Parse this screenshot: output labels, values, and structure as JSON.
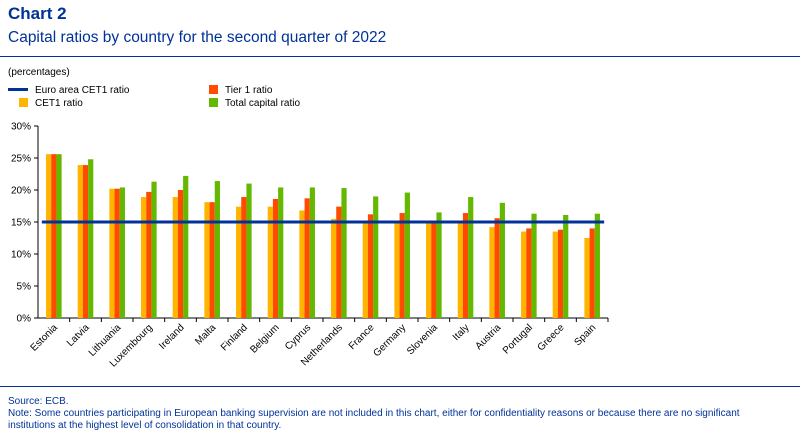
{
  "header": {
    "chart_number": "Chart 2",
    "title": "Capital ratios by country for the second quarter of 2022"
  },
  "units_note": "(percentages)",
  "legend": [
    {
      "label": "Euro area CET1 ratio",
      "color": "#003299",
      "kind": "line"
    },
    {
      "label": "CET1 ratio",
      "color": "#FFB400",
      "kind": "bar"
    },
    {
      "label": "Tier 1 ratio",
      "color": "#FF4B00",
      "kind": "bar"
    },
    {
      "label": "Total capital ratio",
      "color": "#65B800",
      "kind": "bar"
    }
  ],
  "chart_data": {
    "type": "bar",
    "title": "Capital ratios by country for the second quarter of 2022",
    "ylabel": "(percentages)",
    "ylim": [
      0,
      30
    ],
    "yticks": [
      "0%",
      "5%",
      "10%",
      "15%",
      "20%",
      "25%",
      "30%"
    ],
    "categories": [
      "Estonia",
      "Latvia",
      "Lithuania",
      "Luxembourg",
      "Ireland",
      "Malta",
      "Finland",
      "Belgium",
      "Cyprus",
      "Netherlands",
      "France",
      "Germany",
      "Slovenia",
      "Italy",
      "Austria",
      "Portugal",
      "Greece",
      "Spain"
    ],
    "series": [
      {
        "name": "CET1 ratio",
        "color": "#FFB400",
        "values": [
          25.6,
          23.9,
          20.2,
          18.9,
          18.9,
          18.1,
          17.4,
          17.4,
          16.8,
          15.5,
          14.9,
          14.9,
          14.8,
          15.0,
          14.2,
          13.5,
          13.5,
          12.5
        ]
      },
      {
        "name": "Tier 1 ratio",
        "color": "#FF4B00",
        "values": [
          25.6,
          23.9,
          20.2,
          19.7,
          20.0,
          18.1,
          18.9,
          18.6,
          18.7,
          17.4,
          16.2,
          16.4,
          14.8,
          16.4,
          15.6,
          14.0,
          13.8,
          14.0
        ]
      },
      {
        "name": "Total capital ratio",
        "color": "#65B800",
        "values": [
          25.6,
          24.8,
          20.4,
          21.3,
          22.2,
          21.4,
          21.0,
          20.4,
          20.4,
          20.3,
          19.0,
          19.6,
          16.5,
          18.9,
          18.0,
          16.3,
          16.1,
          16.3
        ]
      }
    ],
    "reference_line": {
      "name": "Euro area CET1 ratio",
      "value": 15.0,
      "color": "#003299"
    },
    "grid": false,
    "legend_position": "top-left"
  },
  "footer": {
    "source": "Source: ECB.",
    "note_line1": "Note: Some countries participating in European banking supervision are not included in this chart, either for confidentiality reasons or because there are no significant",
    "note_line2": "institutions at the highest level of consolidation in that country."
  }
}
